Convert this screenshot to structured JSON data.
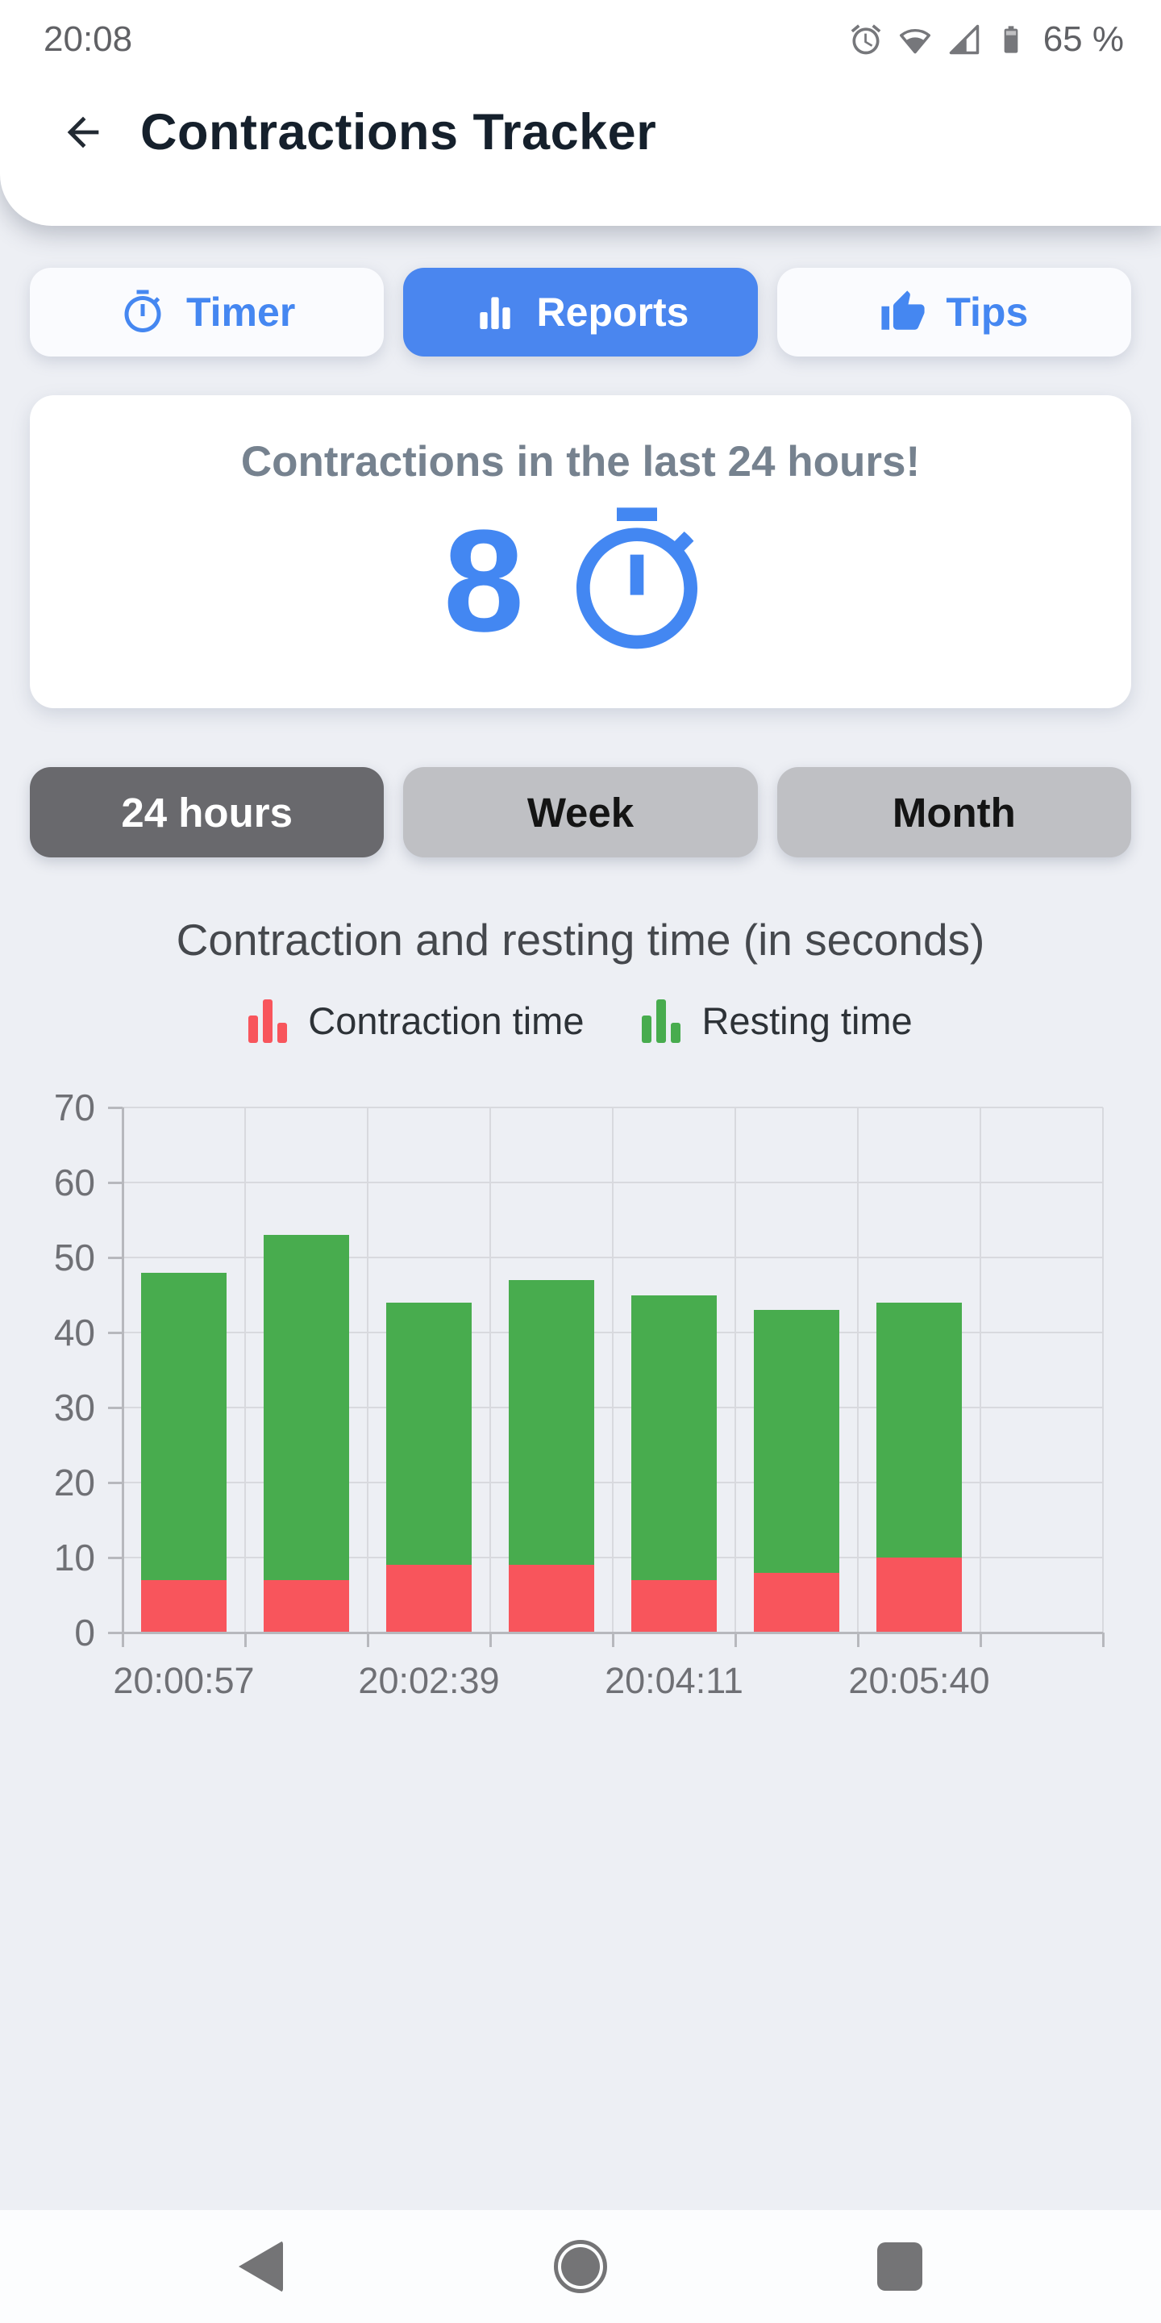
{
  "status_bar": {
    "time": "20:08",
    "battery_text": "65 %"
  },
  "app_bar": {
    "title": "Contractions Tracker"
  },
  "tabs": [
    {
      "label": "Timer",
      "icon": "stopwatch-icon",
      "active": false
    },
    {
      "label": "Reports",
      "icon": "bar-chart-icon",
      "active": true
    },
    {
      "label": "Tips",
      "icon": "thumbs-up-icon",
      "active": false
    }
  ],
  "summary_card": {
    "title": "Contractions in the last 24 hours!",
    "count": "8",
    "icon": "stopwatch-icon"
  },
  "range_buttons": [
    {
      "label": "24 hours",
      "active": true
    },
    {
      "label": "Week",
      "active": false
    },
    {
      "label": "Month",
      "active": false
    }
  ],
  "chart_data": {
    "type": "bar",
    "stacked": true,
    "title": "Contraction and resting time (in seconds)",
    "legend": [
      {
        "name": "Contraction time",
        "color": "#F8555C"
      },
      {
        "name": "Resting time",
        "color": "#48AC4E"
      }
    ],
    "series": [
      {
        "name": "Contraction time",
        "color": "#F8555C",
        "values": [
          7,
          7,
          9,
          9,
          7,
          8,
          10
        ]
      },
      {
        "name": "Resting time",
        "color": "#48AC4E",
        "values": [
          41,
          46,
          35,
          38,
          38,
          35,
          34
        ]
      }
    ],
    "bar_totals": [
      48,
      53,
      44,
      47,
      45,
      43,
      44
    ],
    "ylim": [
      0,
      70
    ],
    "y_ticks": [
      0,
      10,
      20,
      30,
      40,
      50,
      60,
      70
    ],
    "x_tick_labels": [
      "20:00:57",
      "20:02:39",
      "20:04:11",
      "20:05:40"
    ],
    "x_tick_slots": [
      0,
      2,
      4,
      6
    ],
    "num_slots": 8,
    "grid": true,
    "legend_position": "top"
  },
  "colors": {
    "page_bg": "#EDEFF4",
    "accent_blue": "#4587F1",
    "active_tab_bg": "#4A86EF",
    "bar_red": "#F8555C",
    "bar_green": "#48AC4E",
    "segment_active_bg": "#69696D",
    "segment_inactive_bg": "#BFC0C4"
  }
}
